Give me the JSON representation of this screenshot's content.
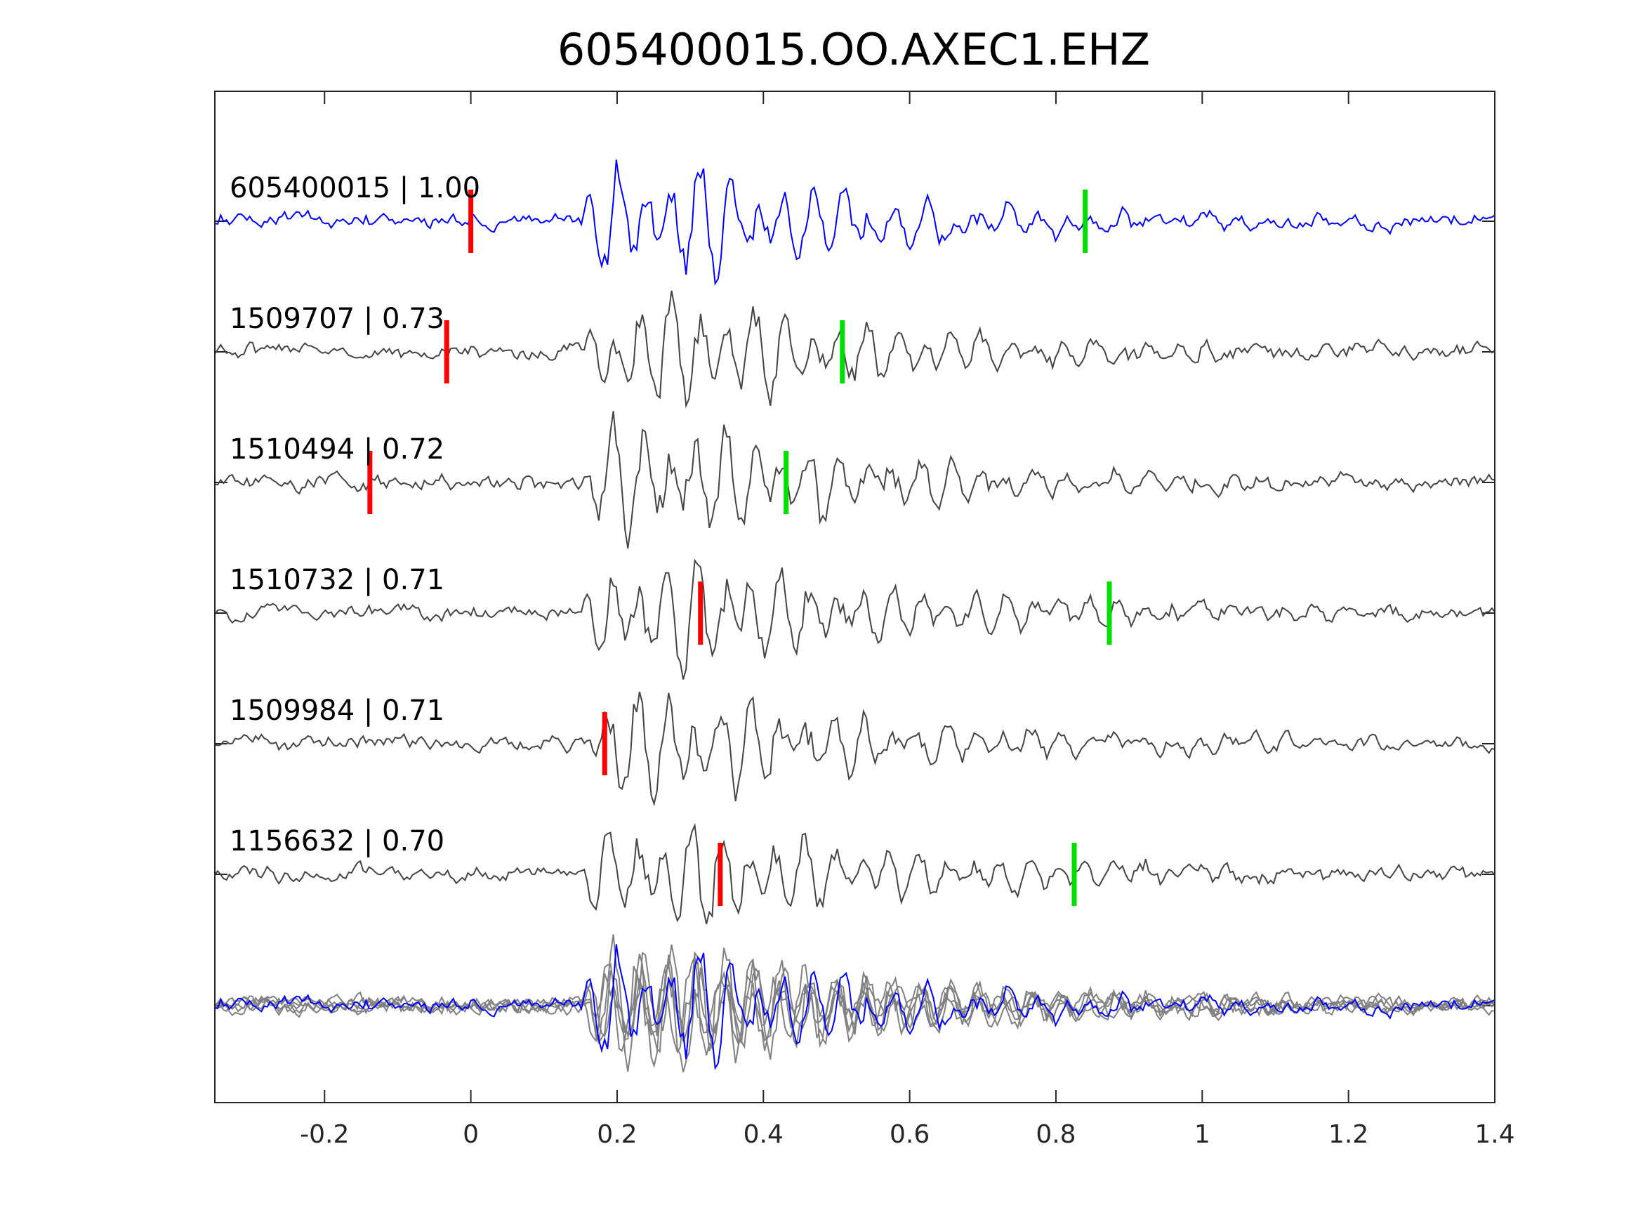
{
  "chart_data": {
    "type": "line",
    "title": "605400015.OO.AXEC1.EHZ",
    "xlabel": "",
    "ylabel": "",
    "xlim": [
      -0.35,
      1.4
    ],
    "xticks": [
      -0.2,
      0,
      0.2,
      0.4,
      0.6,
      0.8,
      1,
      1.2,
      1.4
    ],
    "xtick_labels": [
      "-0.2",
      "0",
      "0.2",
      "0.4",
      "0.6",
      "0.8",
      "1",
      "1.2",
      "1.4"
    ],
    "grid": false,
    "colors": {
      "template": "#0000ff",
      "neighbor": "#444444",
      "stack": "#808080",
      "p_pick": "#ff0000",
      "s_pick": "#00e000"
    },
    "traces": [
      {
        "label": "605400015 | 1.00",
        "id": "605400015",
        "cc": 1.0,
        "p_pick": 0.0,
        "s_pick": 0.84,
        "color": "#0000ff"
      },
      {
        "label": "1509707 | 0.73",
        "id": "1509707",
        "cc": 0.73,
        "p_pick": -0.033,
        "s_pick": 0.508,
        "color": "#444444"
      },
      {
        "label": "1510494 | 0.72",
        "id": "1510494",
        "cc": 0.72,
        "p_pick": -0.138,
        "s_pick": 0.431,
        "color": "#444444"
      },
      {
        "label": "1510732 | 0.71",
        "id": "1510732",
        "cc": 0.71,
        "p_pick": 0.314,
        "s_pick": 0.873,
        "color": "#444444"
      },
      {
        "label": "1509984 | 0.71",
        "id": "1509984",
        "cc": 0.71,
        "p_pick": 0.183,
        "s_pick": null,
        "color": "#444444"
      },
      {
        "label": "1156632 | 0.70",
        "id": "1156632",
        "cc": 0.7,
        "p_pick": 0.341,
        "s_pick": 0.825,
        "color": "#444444"
      }
    ]
  }
}
